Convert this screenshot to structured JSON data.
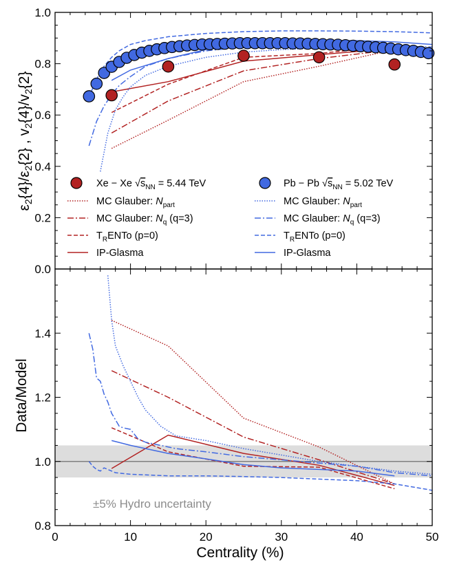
{
  "chart_data": [
    {
      "type": "line",
      "panel": "top",
      "xlim": [
        0,
        50
      ],
      "ylim": [
        0.0,
        1.0
      ],
      "xlabel": "",
      "ylabel": "ε2{4}/ε2{2} , v2{4}/v2{2}",
      "yticks": [
        "0.0",
        "0.2",
        "0.4",
        "0.6",
        "0.8",
        "1.0"
      ],
      "data": {
        "xe": {
          "name": "Xe − Xe √sNN = 5.44 TeV",
          "color": "#b22222",
          "x": [
            7.5,
            15,
            25,
            35,
            45
          ],
          "y": [
            0.677,
            0.789,
            0.831,
            0.825,
            0.797
          ]
        },
        "pb": {
          "name": "Pb − Pb √sNN = 5.02 TeV",
          "color": "#4169e1",
          "x": [
            4.5,
            5.5,
            6.5,
            7.5,
            8.5,
            9.5,
            10.5,
            11.5,
            12.5,
            13.5,
            14.5,
            15.5,
            16.5,
            17.5,
            18.5,
            19.5,
            20.5,
            21.5,
            22.5,
            23.5,
            24.5,
            25.5,
            26.5,
            27.5,
            28.5,
            29.5,
            30.5,
            31.5,
            32.5,
            33.5,
            34.5,
            35.5,
            36.5,
            37.5,
            38.5,
            39.5,
            40.5,
            41.5,
            42.5,
            43.5,
            44.5,
            45.5,
            46.5,
            47.5,
            48.5,
            49.5
          ],
          "y": [
            0.673,
            0.722,
            0.764,
            0.788,
            0.807,
            0.823,
            0.834,
            0.843,
            0.85,
            0.856,
            0.861,
            0.865,
            0.868,
            0.871,
            0.873,
            0.875,
            0.876,
            0.877,
            0.878,
            0.879,
            0.88,
            0.88,
            0.88,
            0.88,
            0.88,
            0.88,
            0.88,
            0.879,
            0.879,
            0.878,
            0.877,
            0.876,
            0.875,
            0.874,
            0.872,
            0.87,
            0.868,
            0.866,
            0.864,
            0.862,
            0.859,
            0.856,
            0.853,
            0.85,
            0.846,
            0.841
          ]
        }
      },
      "models": [
        {
          "name": "xe_glauber_npart",
          "color": "#b22222",
          "dash": "dotted",
          "x": [
            7.5,
            15,
            25,
            35,
            45
          ],
          "y": [
            0.47,
            0.58,
            0.73,
            0.79,
            0.855
          ]
        },
        {
          "name": "xe_glauber_nq",
          "color": "#b22222",
          "dash": "dashdot",
          "x": [
            7.5,
            15,
            25,
            35,
            45
          ],
          "y": [
            0.53,
            0.655,
            0.772,
            0.82,
            0.855
          ]
        },
        {
          "name": "xe_trento",
          "color": "#b22222",
          "dash": "dashed",
          "x": [
            7.5,
            15,
            25,
            35,
            45
          ],
          "y": [
            0.61,
            0.72,
            0.825,
            0.84,
            0.87
          ]
        },
        {
          "name": "xe_ipglasma",
          "color": "#b22222",
          "dash": "solid",
          "x": [
            7.5,
            15,
            25,
            35,
            45
          ],
          "y": [
            0.69,
            0.73,
            0.81,
            0.835,
            0.86
          ]
        },
        {
          "name": "pb_glauber_npart",
          "color": "#4169e1",
          "dash": "dotted",
          "x": [
            6,
            7,
            8,
            9,
            10,
            12,
            15,
            20,
            25,
            30,
            35,
            40,
            45,
            50
          ],
          "y": [
            0.38,
            0.53,
            0.62,
            0.67,
            0.71,
            0.755,
            0.79,
            0.825,
            0.845,
            0.855,
            0.86,
            0.865,
            0.865,
            0.86
          ]
        },
        {
          "name": "pb_glauber_nq",
          "color": "#4169e1",
          "dash": "dashdot",
          "x": [
            4.5,
            5.5,
            6.5,
            7.5,
            8.5,
            10,
            12,
            15,
            20,
            25,
            30,
            35,
            40,
            45,
            50
          ],
          "y": [
            0.48,
            0.575,
            0.635,
            0.68,
            0.715,
            0.75,
            0.79,
            0.82,
            0.85,
            0.865,
            0.87,
            0.87,
            0.87,
            0.87,
            0.865
          ]
        },
        {
          "name": "pb_trento",
          "color": "#4169e1",
          "dash": "dashed",
          "x": [
            4.5,
            5.5,
            6.5,
            7.5,
            8.5,
            10,
            12,
            15,
            20,
            25,
            30,
            35,
            40,
            45,
            50
          ],
          "y": [
            0.67,
            0.74,
            0.79,
            0.825,
            0.85,
            0.875,
            0.89,
            0.905,
            0.918,
            0.925,
            0.928,
            0.928,
            0.927,
            0.925,
            0.92
          ]
        },
        {
          "name": "pb_ipglasma",
          "color": "#4169e1",
          "dash": "solid",
          "x": [
            7.5,
            10,
            15,
            20,
            25,
            30,
            35,
            40,
            45,
            50
          ],
          "y": [
            0.735,
            0.775,
            0.82,
            0.855,
            0.875,
            0.885,
            0.89,
            0.89,
            0.885,
            0.875
          ]
        }
      ],
      "legend": {
        "xe_marker": "Xe − Xe",
        "pb_marker": "Pb − Pb",
        "sqrt_label": "s",
        "sqrt_sub": "NN",
        "xe_energy": " = 5.44 TeV",
        "pb_energy": " = 5.02 TeV",
        "mc_glauber": "MC Glauber: ",
        "npart_N": "N",
        "npart_sub": "part",
        "nq_N": "N",
        "nq_sub": "q",
        "nq_suffix": " (q=3)",
        "trento_T": "T",
        "trento_R": "R",
        "trento_rest": "ENTo (p=0)",
        "ipglasma": "IP-Glasma"
      }
    },
    {
      "type": "line",
      "panel": "bottom",
      "xlim": [
        0,
        50
      ],
      "ylim": [
        0.8,
        1.6
      ],
      "xlabel": "Centrality (%)",
      "ylabel": "Data/Model",
      "xticks": [
        "0",
        "10",
        "20",
        "30",
        "40",
        "50"
      ],
      "yticks": [
        "0.8",
        "1.0",
        "1.2",
        "1.4"
      ],
      "band": {
        "low": 0.95,
        "high": 1.05,
        "label": "±5% Hydro uncertainty",
        "color": "#dddddd"
      },
      "reference": 1.0,
      "series": [
        {
          "name": "xe_glauber_npart",
          "color": "#b22222",
          "dash": "dotted",
          "x": [
            7.5,
            15,
            25,
            35,
            45
          ],
          "y": [
            1.44,
            1.36,
            1.135,
            1.045,
            0.93
          ]
        },
        {
          "name": "xe_glauber_nq",
          "color": "#b22222",
          "dash": "dashdot",
          "x": [
            7.5,
            15,
            25,
            35,
            45
          ],
          "y": [
            1.283,
            1.2,
            1.076,
            1.005,
            0.93
          ]
        },
        {
          "name": "xe_trento",
          "color": "#b22222",
          "dash": "dashed",
          "x": [
            7.5,
            15,
            25,
            35,
            45
          ],
          "y": [
            1.105,
            1.03,
            0.985,
            0.982,
            0.915
          ]
        },
        {
          "name": "xe_ipglasma",
          "color": "#b22222",
          "dash": "solid",
          "x": [
            7.5,
            15,
            25,
            35,
            45
          ],
          "y": [
            0.978,
            1.082,
            1.025,
            0.988,
            0.925
          ]
        },
        {
          "name": "pb_glauber_npart",
          "color": "#4169e1",
          "dash": "dotted",
          "x": [
            7,
            7.5,
            8,
            9,
            10,
            11,
            12,
            14,
            16,
            20,
            25,
            30,
            35,
            40,
            45,
            50
          ],
          "y": [
            1.58,
            1.44,
            1.36,
            1.3,
            1.25,
            1.2,
            1.16,
            1.11,
            1.08,
            1.065,
            1.04,
            1.02,
            1.0,
            0.985,
            0.97,
            0.96
          ]
        },
        {
          "name": "pb_glauber_nq",
          "color": "#4169e1",
          "dash": "dashdot",
          "x": [
            4.5,
            5,
            5.5,
            6,
            6.5,
            7,
            7.5,
            8,
            8.5,
            9,
            10,
            11,
            12,
            14,
            16,
            20,
            25,
            30,
            35,
            40,
            45,
            50
          ],
          "y": [
            1.4,
            1.35,
            1.26,
            1.25,
            1.21,
            1.185,
            1.15,
            1.13,
            1.11,
            1.105,
            1.1,
            1.07,
            1.06,
            1.05,
            1.04,
            1.03,
            1.015,
            1.005,
            0.995,
            0.985,
            0.965,
            0.955
          ]
        },
        {
          "name": "pb_trento",
          "color": "#4169e1",
          "dash": "dashed",
          "x": [
            4.5,
            5,
            5.5,
            6,
            6.5,
            7,
            8,
            10,
            12,
            15,
            20,
            25,
            30,
            35,
            40,
            45,
            50
          ],
          "y": [
            1.0,
            0.985,
            0.975,
            0.97,
            0.98,
            0.975,
            0.965,
            0.96,
            0.958,
            0.955,
            0.955,
            0.953,
            0.95,
            0.945,
            0.94,
            0.93,
            0.91
          ]
        },
        {
          "name": "pb_ipglasma",
          "color": "#4169e1",
          "dash": "solid",
          "x": [
            7.5,
            10,
            15,
            20,
            25,
            30,
            35,
            40,
            45
          ],
          "y": [
            1.065,
            1.05,
            1.025,
            1.008,
            0.99,
            0.98,
            0.975,
            0.97,
            0.955
          ]
        }
      ]
    }
  ]
}
